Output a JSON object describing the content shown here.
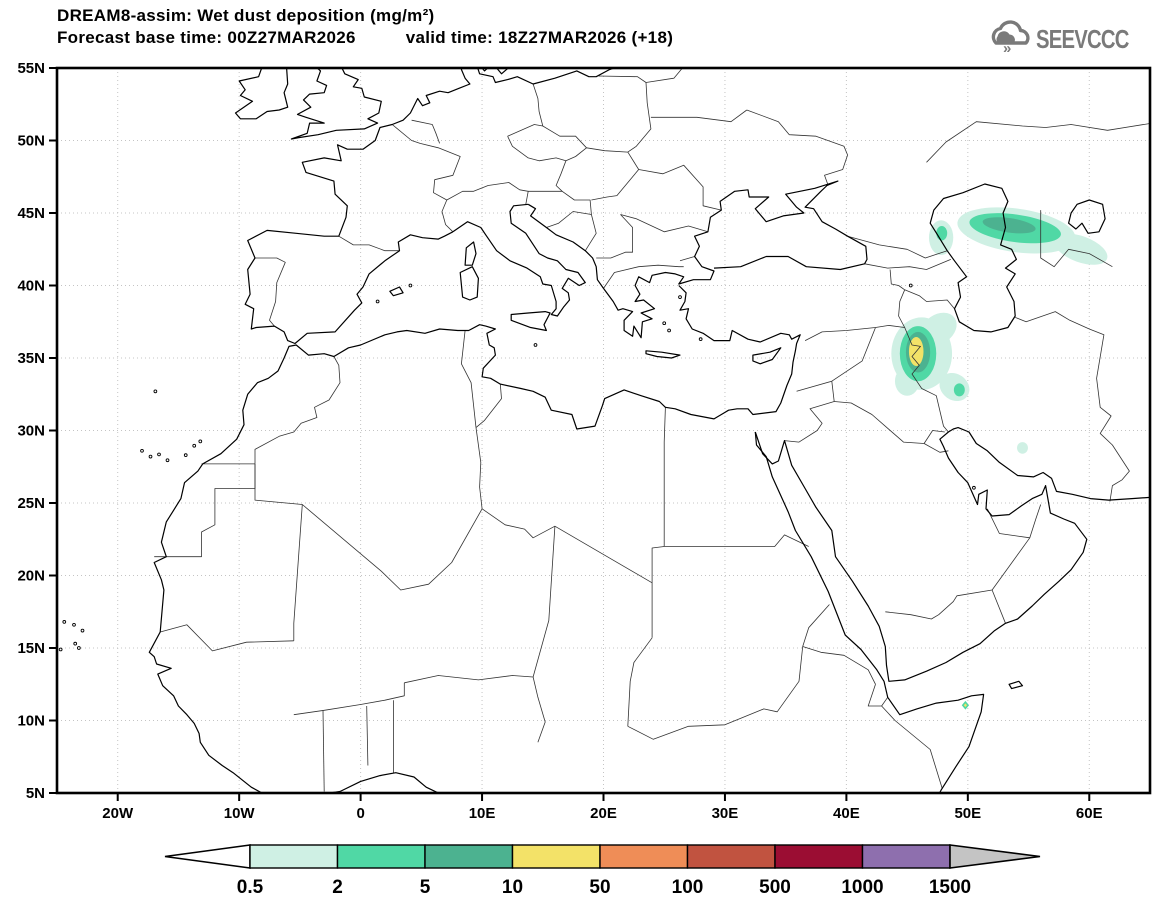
{
  "header": {
    "title_line1": "DREAM8-assim: Wet dust deposition (mg/m²)",
    "title_line2_left": "Forecast base time: 00Z27MAR2026",
    "title_line2_right": "valid time: 18Z27MAR2026 (+18)",
    "logo_text": "SEEVCCC",
    "logo_color": "#7a7a7a"
  },
  "chart_data": {
    "type": "heatmap",
    "title": "DREAM8-assim: Wet dust deposition (mg/m²)",
    "forecast_base_time": "00Z27MAR2026",
    "valid_time": "18Z27MAR2026",
    "forecast_offset": "+18",
    "projection": "equidistant lat-lon map",
    "lon_range": [
      -25,
      65
    ],
    "lat_range": [
      5,
      55
    ],
    "grid": "dotted",
    "lat_ticks": [
      {
        "label": "55N",
        "value": 55
      },
      {
        "label": "50N",
        "value": 50
      },
      {
        "label": "45N",
        "value": 45
      },
      {
        "label": "40N",
        "value": 40
      },
      {
        "label": "35N",
        "value": 35
      },
      {
        "label": "30N",
        "value": 30
      },
      {
        "label": "25N",
        "value": 25
      },
      {
        "label": "20N",
        "value": 20
      },
      {
        "label": "15N",
        "value": 15
      },
      {
        "label": "10N",
        "value": 10
      },
      {
        "label": "5N",
        "value": 5
      }
    ],
    "lon_ticks": [
      {
        "label": "20W",
        "value": -20
      },
      {
        "label": "10W",
        "value": -10
      },
      {
        "label": "0",
        "value": 0
      },
      {
        "label": "10E",
        "value": 10
      },
      {
        "label": "20E",
        "value": 20
      },
      {
        "label": "30E",
        "value": 30
      },
      {
        "label": "40E",
        "value": 40
      },
      {
        "label": "50E",
        "value": 50
      },
      {
        "label": "60E",
        "value": 60
      }
    ],
    "legend": {
      "unit": "mg/m²",
      "values": [
        "0.5",
        "2",
        "5",
        "10",
        "50",
        "100",
        "500",
        "1000",
        "1500"
      ],
      "segment_colors": [
        "#cff0e4",
        "#50d8a5",
        "#4cb290",
        "#f3e268",
        "#ef8d57",
        "#c15340",
        "#9b0d33",
        "#8e6fae"
      ],
      "left_arrow_color": "#ffffff",
      "right_arrow_color": "#c4c4c4",
      "position": "bottom"
    },
    "deposition_areas": [
      {
        "region": "northeast of Caspian Sea (Kazakhstan)",
        "center_lonlat": [
          54.0,
          43.9
        ],
        "peak_band_mg_m2": "5-10"
      },
      {
        "region": "west of Caspian Sea (Dagestan/Azerbaijan)",
        "center_lonlat": [
          47.8,
          43.4
        ],
        "peak_band_mg_m2": "2-5"
      },
      {
        "region": "northern Iraq / Iran border",
        "center_lonlat": [
          45.8,
          35.4
        ],
        "peak_band_mg_m2": "10-50"
      },
      {
        "region": "southwest Iran",
        "center_lonlat": [
          49.2,
          32.9
        ],
        "peak_band_mg_m2": "2-5"
      },
      {
        "region": "southern Iran near Persian Gulf",
        "center_lonlat": [
          54.5,
          28.8
        ],
        "peak_band_mg_m2": "0.5-2"
      },
      {
        "region": "Horn of Africa (Somalia)",
        "center_lonlat": [
          49.8,
          11.05
        ],
        "peak_band_mg_m2": "10-50"
      }
    ],
    "blobs": [
      {
        "level": 1,
        "lon": 54.0,
        "lat": 43.8,
        "rx": 4.9,
        "ry": 1.5,
        "rot": 8
      },
      {
        "level": 1,
        "lon": 59.3,
        "lat": 42.5,
        "rx": 2.3,
        "ry": 0.9,
        "rot": 20
      },
      {
        "level": 2,
        "lon": 53.9,
        "lat": 43.95,
        "rx": 3.8,
        "ry": 0.95,
        "rot": 8
      },
      {
        "level": 3,
        "lon": 53.4,
        "lat": 44.15,
        "rx": 2.2,
        "ry": 0.5,
        "rot": 8
      },
      {
        "level": 1,
        "lon": 47.8,
        "lat": 43.3,
        "rx": 1.0,
        "ry": 1.2,
        "rot": 0
      },
      {
        "level": 2,
        "lon": 47.85,
        "lat": 43.6,
        "rx": 0.45,
        "ry": 0.5,
        "rot": 0
      },
      {
        "level": 1,
        "lon": 46.2,
        "lat": 35.3,
        "rx": 2.5,
        "ry": 2.5,
        "rot": 0
      },
      {
        "level": 1,
        "lon": 47.6,
        "lat": 37.0,
        "rx": 1.6,
        "ry": 1.0,
        "rot": -35
      },
      {
        "level": 1,
        "lon": 45.0,
        "lat": 33.4,
        "rx": 1.0,
        "ry": 1.0,
        "rot": 0
      },
      {
        "level": 2,
        "lon": 45.9,
        "lat": 35.3,
        "rx": 1.5,
        "ry": 1.9,
        "rot": 0
      },
      {
        "level": 3,
        "lon": 45.9,
        "lat": 35.4,
        "rx": 1.0,
        "ry": 1.4,
        "rot": 0
      },
      {
        "level": 4,
        "lon": 45.75,
        "lat": 35.45,
        "rx": 0.6,
        "ry": 1.0,
        "rot": 0
      },
      {
        "level": 1,
        "lon": 48.9,
        "lat": 33.0,
        "rx": 1.3,
        "ry": 0.9,
        "rot": 35
      },
      {
        "level": 2,
        "lon": 49.3,
        "lat": 32.8,
        "rx": 0.45,
        "ry": 0.45,
        "rot": 0
      },
      {
        "level": 1,
        "lon": 54.5,
        "lat": 28.8,
        "rx": 0.45,
        "ry": 0.4,
        "rot": 0
      },
      {
        "level": 2,
        "lon": 49.8,
        "lat": 11.05,
        "rx": 0.3,
        "ry": 0.3,
        "rot": 0,
        "shape": "diamond"
      },
      {
        "level": 4,
        "lon": 49.8,
        "lat": 11.05,
        "rx": 0.13,
        "ry": 0.13,
        "rot": 0,
        "shape": "diamond"
      }
    ],
    "level_colors": {
      "1": "#cff0e4",
      "2": "#50d8a5",
      "3": "#4cb290",
      "4": "#f3e268"
    }
  }
}
